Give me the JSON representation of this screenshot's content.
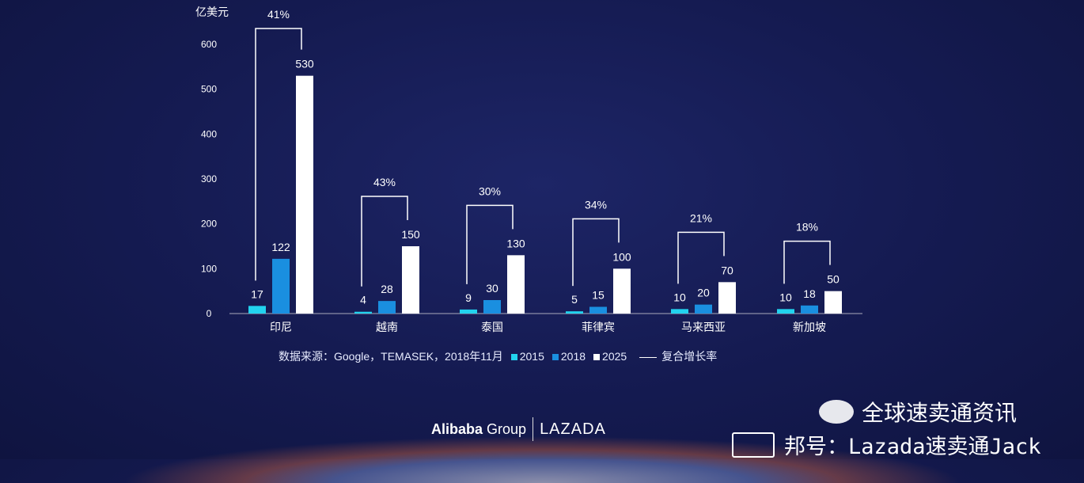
{
  "chart_data": {
    "type": "bar",
    "ylabel": "亿美元",
    "ylim": [
      0,
      600
    ],
    "yticks": [
      "0",
      "100",
      "200",
      "300",
      "400",
      "500",
      "600"
    ],
    "categories": [
      "印尼",
      "越南",
      "泰国",
      "菲律宾",
      "马来西亚",
      "新加坡"
    ],
    "series": [
      {
        "name": "2015",
        "color": "#22d3ee",
        "values": [
          17,
          4,
          9,
          5,
          10,
          10
        ]
      },
      {
        "name": "2018",
        "color": "#1a8fe0",
        "values": [
          122,
          28,
          30,
          15,
          20,
          18
        ]
      },
      {
        "name": "2025",
        "color": "#ffffff",
        "values": [
          530,
          150,
          130,
          100,
          70,
          50
        ]
      }
    ],
    "cagr": [
      "41%",
      "43%",
      "30%",
      "34%",
      "21%",
      "18%"
    ],
    "cagr_legend": "复合增长率",
    "source": "数据来源：Google，TEMASEK，2018年11月",
    "grid": false,
    "legend_position": "bottom"
  },
  "branding": {
    "alibaba": "Alibaba",
    "group": "Group",
    "lazada": "LAZADA",
    "watermark_title": "全球速卖通资讯",
    "watermark_account": "邦号：Lazada速卖通Jack"
  }
}
